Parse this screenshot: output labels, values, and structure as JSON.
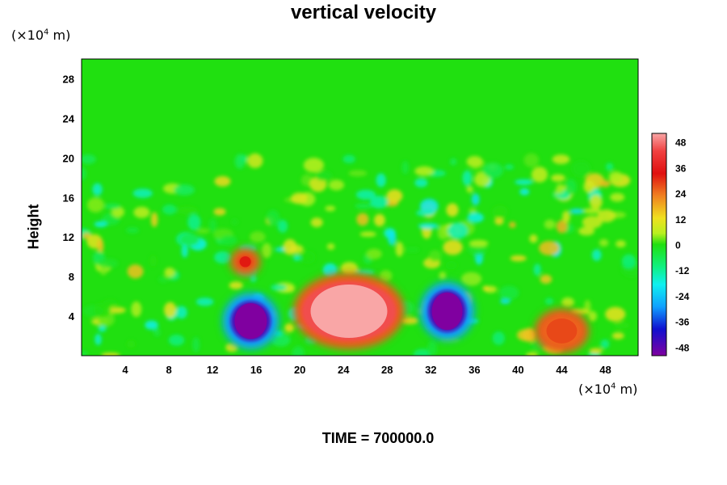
{
  "chart_data": {
    "type": "heatmap",
    "title": "vertical velocity",
    "ylabel": "Height",
    "x_unit_prefix": "(×10",
    "x_unit_exp": "4",
    "x_unit_suffix": " m)",
    "y_unit_prefix": "(×10",
    "y_unit_exp": "4",
    "y_unit_suffix": " m)",
    "xlim": [
      0,
      51
    ],
    "ylim": [
      0,
      30
    ],
    "x_ticks": [
      4,
      8,
      12,
      16,
      20,
      24,
      28,
      32,
      36,
      40,
      44,
      48
    ],
    "y_ticks": [
      4,
      8,
      12,
      16,
      20,
      24,
      28
    ],
    "colorbar": {
      "range": [
        -52,
        52
      ],
      "ticks": [
        48,
        36,
        24,
        12,
        0,
        -12,
        -24,
        -36,
        -48
      ]
    },
    "features": [
      {
        "kind": "updraft",
        "x": 24.5,
        "y": 4.5,
        "value": 52
      },
      {
        "kind": "downdraft",
        "x": 15.5,
        "y": 3.5,
        "value": -52
      },
      {
        "kind": "downdraft",
        "x": 33.5,
        "y": 4.5,
        "value": -52
      },
      {
        "kind": "updraft",
        "x": 44,
        "y": 2.5,
        "value": 30
      },
      {
        "kind": "updraft",
        "x": 15,
        "y": 9.5,
        "value": 35
      }
    ],
    "footer": "TIME = 700000.0"
  }
}
